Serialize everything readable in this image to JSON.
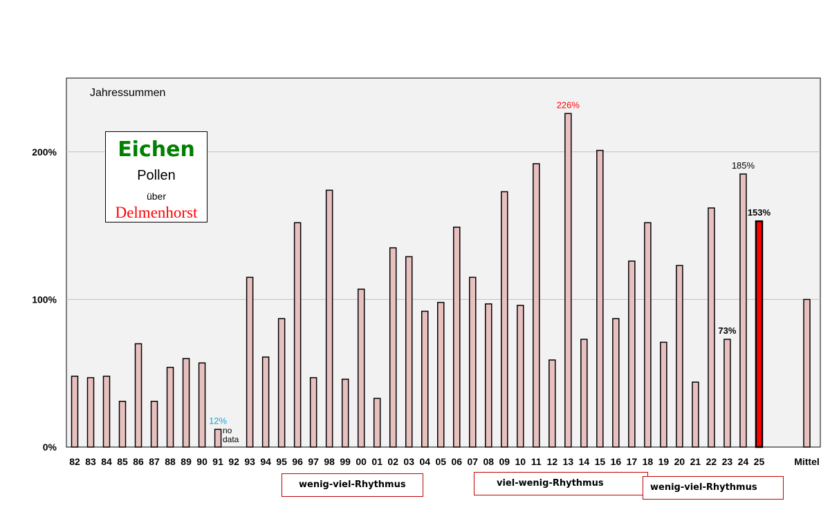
{
  "chart_data": {
    "type": "bar",
    "title": "Jahressummen",
    "categories": [
      "82",
      "83",
      "84",
      "85",
      "86",
      "87",
      "88",
      "89",
      "90",
      "91",
      "92",
      "93",
      "94",
      "95",
      "96",
      "97",
      "98",
      "99",
      "00",
      "01",
      "02",
      "03",
      "04",
      "05",
      "06",
      "07",
      "08",
      "09",
      "10",
      "11",
      "12",
      "13",
      "14",
      "15",
      "16",
      "17",
      "18",
      "19",
      "20",
      "21",
      "22",
      "23",
      "24",
      "25",
      "",
      "",
      "Mittel"
    ],
    "values": [
      48,
      47,
      48,
      31,
      70,
      31,
      54,
      60,
      57,
      12,
      null,
      115,
      61,
      87,
      152,
      47,
      174,
      46,
      107,
      33,
      135,
      129,
      92,
      98,
      149,
      115,
      97,
      173,
      96,
      192,
      59,
      226,
      73,
      201,
      87,
      126,
      152,
      71,
      123,
      44,
      162,
      73,
      185,
      153,
      null,
      null,
      100
    ],
    "highlight": [
      false,
      false,
      false,
      false,
      false,
      false,
      false,
      false,
      false,
      false,
      false,
      false,
      false,
      false,
      false,
      false,
      false,
      false,
      false,
      false,
      false,
      false,
      false,
      false,
      false,
      false,
      false,
      false,
      false,
      false,
      false,
      false,
      false,
      false,
      false,
      false,
      false,
      false,
      false,
      false,
      false,
      false,
      false,
      true,
      false,
      false,
      false
    ],
    "y_ticks": [
      "0%",
      "100%",
      "200%"
    ],
    "y_tick_values": [
      0,
      100,
      200
    ],
    "ylim": [
      0,
      250
    ],
    "grid": true,
    "colors": {
      "bar": "#e8c0c0",
      "bar_highlight": "#ff0000",
      "plot_bg": "#f2f2f2",
      "grid": "#c0c0c0"
    },
    "data_labels": [
      {
        "category_index": 9,
        "text": "12%",
        "color": "#1aa3d9",
        "bold": false
      },
      {
        "category_index": 31,
        "text": "226%",
        "color": "#ff0000",
        "bold": false
      },
      {
        "category_index": 41,
        "text": "73%",
        "color": "#000000",
        "bold": true
      },
      {
        "category_index": 42,
        "text": "185%",
        "color": "#000000",
        "bold": false
      },
      {
        "category_index": 43,
        "text": "153%",
        "color": "#000000",
        "bold": true
      }
    ]
  },
  "annotations": {
    "no_data_line1": "no",
    "no_data_line2": "data"
  },
  "info_box": {
    "plant": "Eichen",
    "kind": "Pollen",
    "prep": "über",
    "city": "Delmenhorst"
  },
  "periods": [
    {
      "label": "wenig-viel-Rhythmus"
    },
    {
      "label": "viel-wenig-Rhythmus"
    },
    {
      "label": "wenig-viel-Rhythmus"
    }
  ]
}
